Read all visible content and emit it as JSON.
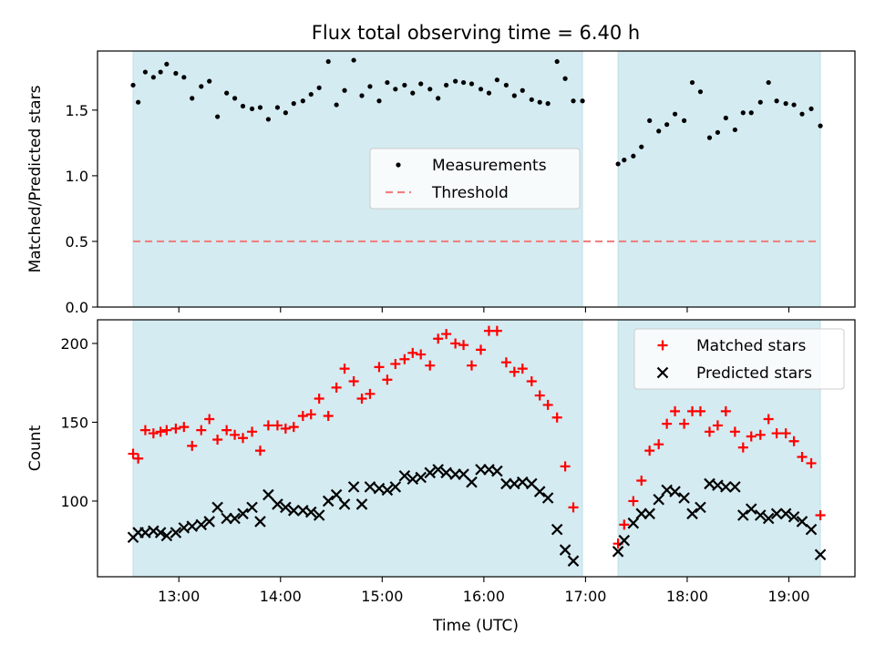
{
  "chart_data": {
    "title": "Flux total observing time = 6.40 h",
    "xlabel": "Time (UTC)",
    "x_unit": "hours UTC",
    "xlim": [
      12.2,
      19.65
    ],
    "xticks": [
      13,
      14,
      15,
      16,
      17,
      18,
      19
    ],
    "xtick_labels": [
      "13:00",
      "14:00",
      "15:00",
      "16:00",
      "17:00",
      "18:00",
      "19:00"
    ],
    "observing_windows": [
      [
        12.55,
        16.97
      ],
      [
        17.32,
        19.31
      ]
    ],
    "window_color": "#d4ebf1",
    "panels": [
      {
        "type": "scatter",
        "ylabel": "Matched/Predicted stars",
        "ylim": [
          0,
          1.95
        ],
        "yticks": [
          0.0,
          0.5,
          1.0,
          1.5
        ],
        "ytick_labels": [
          "0.0",
          "0.5",
          "1.0",
          "1.5"
        ],
        "legend": "center-right",
        "series": [
          {
            "name": "Measurements",
            "marker": "dot",
            "color": "#000000",
            "x": [
              12.55,
              12.6,
              12.67,
              12.75,
              12.82,
              12.88,
              12.97,
              13.05,
              13.13,
              13.22,
              13.3,
              13.38,
              13.47,
              13.55,
              13.63,
              13.72,
              13.8,
              13.88,
              13.97,
              14.05,
              14.13,
              14.22,
              14.3,
              14.38,
              14.47,
              14.55,
              14.63,
              14.72,
              14.8,
              14.88,
              14.97,
              15.05,
              15.13,
              15.22,
              15.3,
              15.38,
              15.47,
              15.55,
              15.63,
              15.72,
              15.8,
              15.88,
              15.97,
              16.05,
              16.13,
              16.22,
              16.3,
              16.38,
              16.47,
              16.55,
              16.63,
              16.72,
              16.8,
              16.88,
              16.97,
              17.32,
              17.38,
              17.47,
              17.55,
              17.63,
              17.72,
              17.8,
              17.88,
              17.97,
              18.05,
              18.13,
              18.22,
              18.3,
              18.38,
              18.47,
              18.55,
              18.63,
              18.72,
              18.8,
              18.88,
              18.97,
              19.05,
              19.13,
              19.22,
              19.31
            ],
            "y": [
              1.69,
              1.56,
              1.79,
              1.75,
              1.79,
              1.85,
              1.78,
              1.75,
              1.59,
              1.68,
              1.72,
              1.45,
              1.63,
              1.59,
              1.53,
              1.51,
              1.52,
              1.43,
              1.52,
              1.48,
              1.55,
              1.57,
              1.62,
              1.67,
              1.87,
              1.54,
              1.65,
              1.88,
              1.61,
              1.68,
              1.57,
              1.71,
              1.66,
              1.69,
              1.63,
              1.7,
              1.66,
              1.59,
              1.69,
              1.72,
              1.71,
              1.7,
              1.66,
              1.63,
              1.73,
              1.69,
              1.61,
              1.65,
              1.58,
              1.56,
              1.55,
              1.87,
              1.74,
              1.57,
              1.57,
              1.09,
              1.12,
              1.15,
              1.22,
              1.42,
              1.34,
              1.39,
              1.47,
              1.42,
              1.71,
              1.64,
              1.29,
              1.33,
              1.44,
              1.35,
              1.48,
              1.48,
              1.56,
              1.71,
              1.57,
              1.55,
              1.54,
              1.47,
              1.51,
              1.38
            ]
          },
          {
            "name": "Threshold",
            "marker": "dashed-line",
            "color": "#f08080",
            "x": [
              12.55,
              19.31
            ],
            "y": [
              0.5,
              0.5
            ]
          }
        ]
      },
      {
        "type": "scatter",
        "ylabel": "Count",
        "ylim": [
          52,
          215
        ],
        "yticks": [
          100,
          150,
          200
        ],
        "ytick_labels": [
          "100",
          "150",
          "200"
        ],
        "legend": "top-right",
        "series": [
          {
            "name": "Matched stars",
            "marker": "plus",
            "color": "#ff0000",
            "x": [
              12.55,
              12.6,
              12.67,
              12.75,
              12.82,
              12.88,
              12.97,
              13.05,
              13.13,
              13.22,
              13.3,
              13.38,
              13.47,
              13.55,
              13.63,
              13.72,
              13.8,
              13.88,
              13.97,
              14.05,
              14.13,
              14.22,
              14.3,
              14.38,
              14.47,
              14.55,
              14.63,
              14.72,
              14.8,
              14.88,
              14.97,
              15.05,
              15.13,
              15.22,
              15.3,
              15.38,
              15.47,
              15.55,
              15.63,
              15.72,
              15.8,
              15.88,
              15.97,
              16.05,
              16.13,
              16.22,
              16.3,
              16.38,
              16.47,
              16.55,
              16.63,
              16.72,
              16.8,
              16.88,
              16.97,
              17.32,
              17.38,
              17.47,
              17.55,
              17.63,
              17.72,
              17.8,
              17.88,
              17.97,
              18.05,
              18.13,
              18.22,
              18.3,
              18.38,
              18.47,
              18.55,
              18.63,
              18.72,
              18.8,
              18.88,
              18.97,
              19.05,
              19.13,
              19.22,
              19.31
            ],
            "y": [
              130,
              127,
              145,
              143,
              144,
              145,
              146,
              147,
              135,
              145,
              152,
              139,
              145,
              142,
              140,
              144,
              132,
              148,
              148,
              146,
              147,
              154,
              155,
              165,
              154,
              172,
              184,
              176,
              165,
              168,
              185,
              177,
              187,
              190,
              194,
              193,
              186,
              203,
              206,
              200,
              199,
              186,
              196,
              208,
              208,
              188,
              182,
              184,
              176,
              167,
              161,
              153,
              122,
              96,
              null,
              73,
              85,
              100,
              113,
              132,
              136,
              149,
              157,
              149,
              157,
              157,
              144,
              148,
              157,
              144,
              134,
              141,
              142,
              152,
              143,
              143,
              138,
              128,
              124,
              91
            ]
          },
          {
            "name": "Predicted stars",
            "marker": "x",
            "color": "#000000",
            "x": [
              12.55,
              12.6,
              12.67,
              12.75,
              12.82,
              12.88,
              12.97,
              13.05,
              13.13,
              13.22,
              13.3,
              13.38,
              13.47,
              13.55,
              13.63,
              13.72,
              13.8,
              13.88,
              13.97,
              14.05,
              14.13,
              14.22,
              14.3,
              14.38,
              14.47,
              14.55,
              14.63,
              14.72,
              14.8,
              14.88,
              14.97,
              15.05,
              15.13,
              15.22,
              15.3,
              15.38,
              15.47,
              15.55,
              15.63,
              15.72,
              15.8,
              15.88,
              15.97,
              16.05,
              16.13,
              16.22,
              16.3,
              16.38,
              16.47,
              16.55,
              16.63,
              16.72,
              16.8,
              16.88,
              16.97,
              17.32,
              17.38,
              17.47,
              17.55,
              17.63,
              17.72,
              17.8,
              17.88,
              17.97,
              18.05,
              18.13,
              18.22,
              18.3,
              18.38,
              18.47,
              18.55,
              18.63,
              18.72,
              18.8,
              18.88,
              18.97,
              19.05,
              19.13,
              19.22,
              19.31
            ],
            "y": [
              77,
              80,
              80,
              81,
              80,
              78,
              80,
              83,
              84,
              85,
              87,
              96,
              89,
              89,
              92,
              96,
              87,
              104,
              98,
              96,
              94,
              94,
              93,
              91,
              100,
              104,
              98,
              109,
              98,
              109,
              108,
              107,
              109,
              116,
              114,
              115,
              118,
              120,
              118,
              117,
              117,
              112,
              120,
              120,
              119,
              111,
              111,
              112,
              111,
              106,
              102,
              82,
              69,
              62,
              null,
              68,
              75,
              86,
              92,
              92,
              101,
              107,
              106,
              102,
              92,
              96,
              111,
              110,
              109,
              109,
              91,
              95,
              91,
              89,
              92,
              92,
              90,
              87,
              82,
              66
            ]
          }
        ]
      }
    ]
  }
}
